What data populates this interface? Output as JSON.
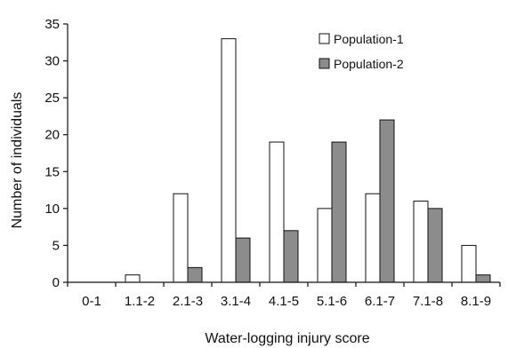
{
  "chart_data": {
    "type": "bar",
    "categories": [
      "0-1",
      "1.1-2",
      "2.1-3",
      "3.1-4",
      "4.1-5",
      "5.1-6",
      "6.1-7",
      "7.1-8",
      "8.1-9"
    ],
    "series": [
      {
        "name": "Population-1",
        "values": [
          0,
          1,
          12,
          33,
          19,
          10,
          12,
          11,
          5
        ],
        "color": "#ffffff"
      },
      {
        "name": "Population-2",
        "values": [
          0,
          0,
          2,
          6,
          7,
          19,
          22,
          10,
          1
        ],
        "color": "#8c8c8c"
      }
    ],
    "xlabel": "Water-logging injury score",
    "ylabel": "Number of individuals",
    "ylim": [
      0,
      35
    ],
    "yticks": [
      0,
      5,
      10,
      15,
      20,
      25,
      30,
      35
    ],
    "grid": false,
    "legend": "top-right"
  }
}
